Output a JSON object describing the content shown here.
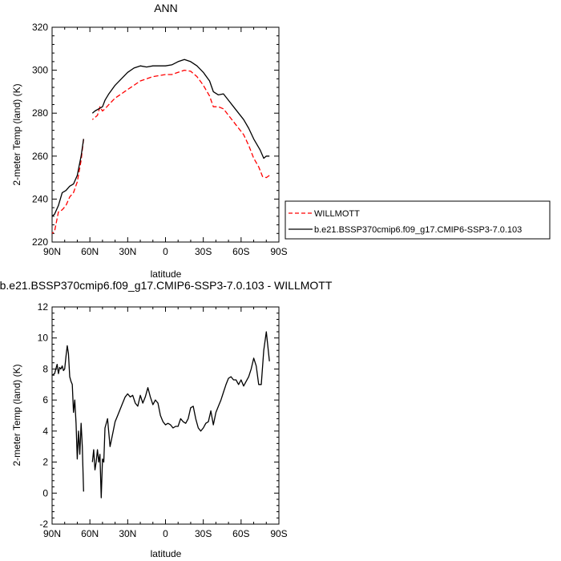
{
  "chart_data": [
    {
      "type": "line",
      "title": "ANN",
      "xlabel": "latitude",
      "ylabel": "2-meter Temp (land) (K)",
      "x_tick_labels": [
        "90N",
        "60N",
        "30N",
        "0",
        "30S",
        "60S",
        "90S"
      ],
      "x_tick_values": [
        90,
        60,
        30,
        0,
        -30,
        -60,
        -90
      ],
      "xlim": [
        90,
        -90
      ],
      "ylim": [
        220,
        320
      ],
      "y_tick_values": [
        220,
        240,
        260,
        280,
        300,
        320
      ],
      "legend_position": "right",
      "series": [
        {
          "name": "WILLMOTT",
          "color": "#ff0000",
          "dash": "dashed",
          "segments": [
            [
              [
                -82.5,
                251
              ],
              [
                -80,
                250
              ],
              [
                -77,
                250.5
              ],
              [
                -74,
                255
              ],
              [
                -70,
                259
              ],
              [
                -66,
                265
              ],
              [
                -62,
                270
              ],
              [
                -58,
                273
              ],
              [
                -54,
                276
              ],
              [
                -50,
                279
              ],
              [
                -46,
                282
              ],
              [
                -42,
                283
              ],
              [
                -38,
                283
              ],
              [
                -35,
                288
              ],
              [
                -30,
                293
              ],
              [
                -25,
                297
              ],
              [
                -20,
                299.5
              ],
              [
                -15,
                300
              ],
              [
                -10,
                299
              ],
              [
                -5,
                298
              ],
              [
                0,
                298
              ],
              [
                5,
                297.5
              ],
              [
                10,
                297
              ],
              [
                15,
                296
              ],
              [
                20,
                295
              ],
              [
                25,
                293
              ],
              [
                30,
                291
              ],
              [
                35,
                289
              ],
              [
                40,
                287
              ],
              [
                45,
                284
              ],
              [
                48,
                282
              ],
              [
                50,
                281
              ],
              [
                52,
                283
              ],
              [
                54,
                279
              ],
              [
                56,
                278
              ],
              [
                58,
                277
              ]
            ],
            [
              [
                65,
                268
              ],
              [
                67,
                258
              ],
              [
                70,
                248
              ],
              [
                73,
                243
              ],
              [
                76,
                241
              ],
              [
                79,
                237
              ],
              [
                82,
                235
              ],
              [
                85,
                234
              ],
              [
                88,
                225
              ],
              [
                90,
                224
              ]
            ]
          ]
        },
        {
          "name": "b.e21.BSSP370cmip6.f09_g17.CMIP6-SSP3-7.0.103",
          "color": "#000000",
          "dash": "solid",
          "segments": [
            [
              [
                -82.5,
                260
              ],
              [
                -80,
                260
              ],
              [
                -78,
                259
              ],
              [
                -75,
                263
              ],
              [
                -70,
                268
              ],
              [
                -66,
                273
              ],
              [
                -62,
                277
              ],
              [
                -58,
                280
              ],
              [
                -54,
                283
              ],
              [
                -50,
                286
              ],
              [
                -46,
                289
              ],
              [
                -42,
                288.5
              ],
              [
                -38,
                290
              ],
              [
                -35,
                295
              ],
              [
                -30,
                299
              ],
              [
                -25,
                302
              ],
              [
                -20,
                304
              ],
              [
                -15,
                305
              ],
              [
                -10,
                304
              ],
              [
                -5,
                302.5
              ],
              [
                0,
                302
              ],
              [
                5,
                302
              ],
              [
                10,
                302
              ],
              [
                15,
                301.5
              ],
              [
                20,
                302
              ],
              [
                25,
                301
              ],
              [
                30,
                299
              ],
              [
                35,
                296
              ],
              [
                40,
                293
              ],
              [
                45,
                289
              ],
              [
                48,
                286
              ],
              [
                50,
                283
              ],
              [
                53,
                282
              ],
              [
                56,
                281
              ],
              [
                58,
                280
              ]
            ],
            [
              [
                65,
                268
              ],
              [
                67,
                260
              ],
              [
                70,
                251
              ],
              [
                73,
                247
              ],
              [
                76,
                246
              ],
              [
                79,
                244
              ],
              [
                82,
                243
              ],
              [
                85,
                237
              ],
              [
                88,
                233
              ],
              [
                90,
                232
              ]
            ]
          ]
        }
      ]
    },
    {
      "type": "line",
      "title": "b.e21.BSSP370cmip6.f09_g17.CMIP6-SSP3-7.0.103 - WILLMOTT",
      "xlabel": "latitude",
      "ylabel": "2-meter Temp (land) (K)",
      "x_tick_labels": [
        "90N",
        "60N",
        "30N",
        "0",
        "30S",
        "60S",
        "90S"
      ],
      "x_tick_values": [
        90,
        60,
        30,
        0,
        -30,
        -60,
        -90
      ],
      "xlim": [
        90,
        -90
      ],
      "ylim": [
        -2,
        12
      ],
      "y_tick_values": [
        -2,
        0,
        2,
        4,
        6,
        8,
        10,
        12
      ],
      "series": [
        {
          "color": "#000000",
          "dash": "solid",
          "segments": [
            [
              [
                -82.5,
                8.5
              ],
              [
                -80,
                10.4
              ],
              [
                -78,
                9.2
              ],
              [
                -76,
                7.0
              ],
              [
                -74,
                7.0
              ],
              [
                -72,
                8.2
              ],
              [
                -70,
                8.7
              ],
              [
                -68,
                8.0
              ],
              [
                -66,
                7.5
              ],
              [
                -64,
                7.2
              ],
              [
                -62,
                6.9
              ],
              [
                -60,
                7.3
              ],
              [
                -58,
                7.0
              ],
              [
                -56,
                7.3
              ],
              [
                -54,
                7.3
              ],
              [
                -52,
                7.5
              ],
              [
                -50,
                7.4
              ],
              [
                -48,
                7.0
              ],
              [
                -46,
                6.5
              ],
              [
                -44,
                6.0
              ],
              [
                -42,
                5.6
              ],
              [
                -40,
                5.2
              ],
              [
                -38,
                4.4
              ],
              [
                -36,
                5.3
              ],
              [
                -34,
                4.6
              ],
              [
                -32,
                4.5
              ],
              [
                -30,
                4.2
              ],
              [
                -28,
                4.0
              ],
              [
                -26,
                4.2
              ],
              [
                -24,
                4.8
              ],
              [
                -22,
                5.6
              ],
              [
                -20,
                5.5
              ],
              [
                -18,
                4.8
              ],
              [
                -16,
                4.5
              ],
              [
                -14,
                4.6
              ],
              [
                -12,
                4.8
              ],
              [
                -10,
                4.3
              ],
              [
                -8,
                4.3
              ],
              [
                -6,
                4.2
              ],
              [
                -4,
                4.4
              ],
              [
                -2,
                4.5
              ],
              [
                0,
                4.4
              ],
              [
                2,
                4.6
              ],
              [
                4,
                5.0
              ],
              [
                6,
                5.8
              ],
              [
                8,
                6.0
              ],
              [
                10,
                5.7
              ],
              [
                12,
                6.2
              ],
              [
                14,
                6.8
              ],
              [
                16,
                6.2
              ],
              [
                18,
                5.8
              ],
              [
                20,
                6.3
              ],
              [
                22,
                5.6
              ],
              [
                24,
                5.8
              ],
              [
                26,
                6.3
              ],
              [
                28,
                6.2
              ],
              [
                30,
                6.4
              ],
              [
                32,
                6.2
              ],
              [
                34,
                5.8
              ],
              [
                36,
                5.4
              ],
              [
                38,
                5.0
              ],
              [
                40,
                4.6
              ],
              [
                42,
                3.8
              ],
              [
                44,
                3.0
              ],
              [
                46,
                4.8
              ],
              [
                48,
                4.2
              ],
              [
                49,
                2.0
              ],
              [
                50,
                2.2
              ],
              [
                51,
                -0.3
              ],
              [
                52,
                2.5
              ],
              [
                53,
                2.0
              ],
              [
                54,
                2.8
              ],
              [
                55,
                2.0
              ],
              [
                56,
                1.5
              ],
              [
                57,
                2.8
              ],
              [
                58,
                2.0
              ]
            ],
            [
              [
                65,
                0.1
              ],
              [
                66,
                3.0
              ],
              [
                67,
                4.5
              ],
              [
                68,
                2.5
              ],
              [
                69,
                4.0
              ],
              [
                70,
                2.2
              ],
              [
                71,
                4.5
              ],
              [
                72,
                6.0
              ],
              [
                73,
                5.2
              ],
              [
                74,
                7.0
              ],
              [
                75,
                7.2
              ],
              [
                76,
                7.5
              ],
              [
                77,
                9.0
              ],
              [
                78,
                9.5
              ],
              [
                79,
                8.8
              ],
              [
                80,
                8.0
              ],
              [
                81,
                7.9
              ],
              [
                82,
                8.2
              ],
              [
                83,
                8.0
              ],
              [
                84,
                8.1
              ],
              [
                85,
                7.7
              ],
              [
                86,
                8.3
              ],
              [
                88,
                7.7
              ],
              [
                90,
                7.6
              ]
            ]
          ]
        }
      ]
    }
  ]
}
